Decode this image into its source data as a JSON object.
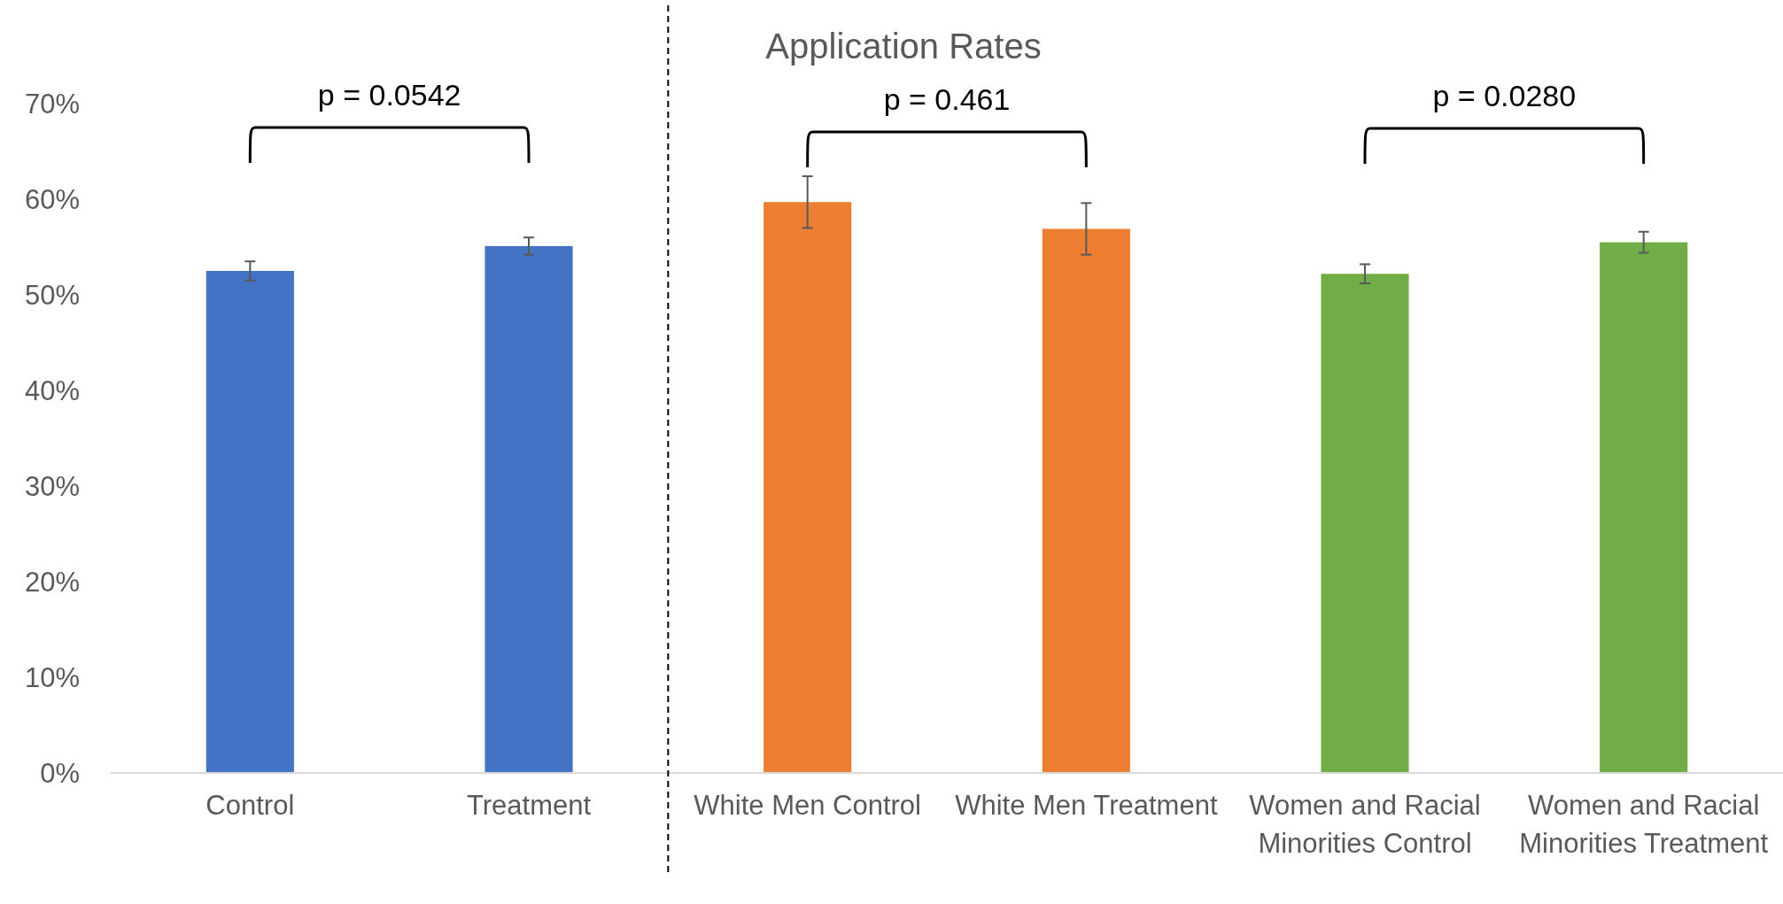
{
  "chart_data": {
    "type": "bar",
    "title": "Application Rates",
    "categories": [
      "Control",
      "Treatment",
      "White Men Control",
      "White Men Treatment",
      "Women and Racial Minorities Control",
      "Women and Racial Minorities Treatment"
    ],
    "values": [
      52.5,
      55.1,
      59.7,
      56.9,
      52.2,
      55.5
    ],
    "errors": [
      1.0,
      0.9,
      2.7,
      2.7,
      1.0,
      1.1
    ],
    "colors": [
      "#4472c4",
      "#4472c4",
      "#ed7d31",
      "#ed7d31",
      "#70ad47",
      "#70ad47"
    ],
    "ylim": [
      0,
      70
    ],
    "yticks": [
      {
        "value": 0,
        "label": "0%"
      },
      {
        "value": 10,
        "label": "10%"
      },
      {
        "value": 20,
        "label": "20%"
      },
      {
        "value": 30,
        "label": "30%"
      },
      {
        "value": 40,
        "label": "40%"
      },
      {
        "value": 50,
        "label": "50%"
      },
      {
        "value": 60,
        "label": "60%"
      },
      {
        "value": 70,
        "label": "70%"
      }
    ],
    "annotations": [
      "p = 0.0542",
      "p = 0.461",
      "p = 0.0280"
    ],
    "grid": false
  }
}
